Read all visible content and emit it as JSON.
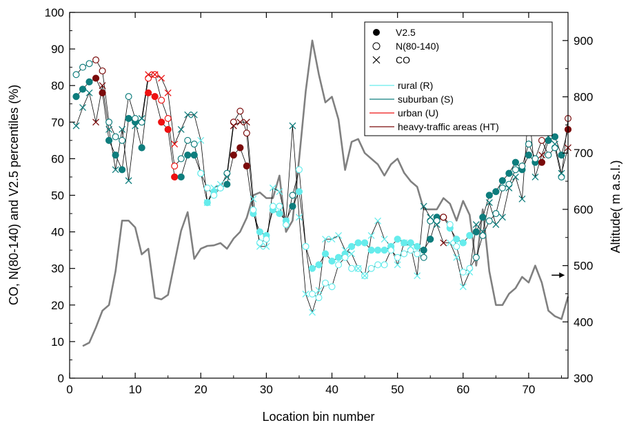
{
  "chart_data": {
    "type": "scatter",
    "xlabel": "Location bin number",
    "ylabel": "CO, N(80-140) and V2.5 percentiles (%)",
    "y2label": "Altitude( m a.s.l.)",
    "xlim": [
      0,
      76
    ],
    "ylim": [
      0,
      100
    ],
    "y2lim": [
      300,
      950
    ],
    "xticks": [
      0,
      10,
      20,
      30,
      40,
      50,
      60,
      70
    ],
    "yticks": [
      0,
      10,
      20,
      30,
      40,
      50,
      60,
      70,
      80,
      90,
      100
    ],
    "y2ticks": [
      300,
      400,
      500,
      600,
      700,
      800,
      900
    ],
    "grid": false,
    "legend_position": "top-right",
    "legend_markers": [
      {
        "label": "V2.5",
        "marker": "filled-circle"
      },
      {
        "label": "N(80-140)",
        "marker": "open-circle"
      },
      {
        "label": "CO",
        "marker": "cross"
      }
    ],
    "legend_areas": [
      {
        "key": "R",
        "label": "rural (R)",
        "color": "#66ecec"
      },
      {
        "key": "S",
        "label": "suburban (S)",
        "color": "#0e7d7d"
      },
      {
        "key": "U",
        "label": "urban (U)",
        "color": "#ee1111"
      },
      {
        "key": "HT",
        "label": "heavy-traffic areas (HT)",
        "color": "#7a0a0a"
      }
    ],
    "area_by_bin": "SSSHHSSSSSSUUUUUSSSRRRRSHHHRRRRRRSRRRRRRRRRRRRRRRRRRRSSSHRRRRSSSSSSSSSSHSSSH",
    "series": [
      {
        "name": "V2.5",
        "values": [
          77,
          79,
          81,
          82,
          78,
          65,
          61,
          57,
          71,
          70,
          63,
          78,
          77,
          70,
          68,
          55,
          55,
          61,
          61,
          56,
          48,
          51,
          52,
          53,
          61,
          63,
          58,
          45,
          40,
          39,
          46,
          45,
          43,
          47,
          51,
          36,
          30,
          31,
          34,
          32,
          33,
          34,
          36,
          37,
          37,
          35,
          35,
          35,
          36,
          38,
          37,
          37,
          36,
          35,
          38,
          44,
          44,
          41,
          38,
          37,
          39,
          40,
          44,
          50,
          51,
          54,
          56,
          59,
          57,
          61,
          59,
          59,
          65,
          66,
          61,
          68
        ]
      },
      {
        "name": "N(80-140)",
        "values": [
          83,
          85,
          86,
          87,
          84,
          70,
          66,
          65,
          77,
          71,
          70,
          82,
          83,
          76,
          71,
          58,
          60,
          65,
          64,
          56,
          52,
          50,
          52,
          56,
          70,
          73,
          67,
          46,
          37,
          38,
          47,
          47,
          42,
          50,
          57,
          36,
          23,
          22,
          26,
          25,
          31,
          33,
          30,
          30,
          28,
          30,
          31,
          31,
          35,
          33,
          34,
          35,
          34,
          33,
          43,
          43,
          44,
          42,
          36,
          29,
          30,
          33,
          39,
          43,
          45,
          52,
          53,
          57,
          58,
          64,
          60,
          65,
          61,
          63,
          55,
          71
        ]
      },
      {
        "name": "CO",
        "values": [
          69,
          74,
          78,
          70,
          80,
          68,
          57,
          68,
          54,
          69,
          71,
          83,
          83,
          82,
          78,
          64,
          68,
          72,
          72,
          65,
          48,
          52,
          53,
          55,
          69,
          70,
          70,
          49,
          36,
          36,
          52,
          51,
          43,
          69,
          44,
          23,
          18,
          24,
          38,
          38,
          39,
          35,
          34,
          30,
          28,
          39,
          43,
          38,
          36,
          31,
          37,
          36,
          28,
          47,
          44,
          42,
          37,
          37,
          33,
          25,
          29,
          42,
          40,
          48,
          42,
          44,
          52,
          55,
          49,
          74,
          55,
          61,
          66,
          64,
          56,
          63
        ]
      }
    ],
    "altitude": {
      "name": "Altitude",
      "color": "#808080",
      "x": [
        2,
        3,
        4,
        5,
        6,
        7,
        8,
        9,
        10,
        11,
        12,
        13,
        14,
        15,
        16,
        17,
        18,
        19,
        20,
        21,
        22,
        23,
        24,
        25,
        26,
        27,
        28,
        29,
        30,
        31,
        32,
        33,
        34,
        35,
        36,
        37,
        38,
        39,
        40,
        41,
        42,
        43,
        44,
        45,
        46,
        47,
        48,
        49,
        50,
        51,
        52,
        53,
        54,
        55,
        56,
        57,
        58,
        59,
        60,
        61,
        62,
        63,
        64,
        65,
        66,
        67,
        68,
        69,
        70,
        71,
        72,
        73,
        74,
        75,
        76
      ],
      "values": [
        357,
        363,
        390,
        420,
        430,
        490,
        580,
        580,
        568,
        520,
        530,
        443,
        440,
        448,
        505,
        562,
        595,
        512,
        530,
        535,
        536,
        540,
        530,
        548,
        560,
        585,
        625,
        630,
        620,
        620,
        660,
        560,
        580,
        690,
        810,
        900,
        840,
        790,
        800,
        760,
        670,
        720,
        725,
        700,
        690,
        680,
        660,
        680,
        690,
        665,
        650,
        640,
        600,
        600,
        600,
        620,
        610,
        580,
        615,
        590,
        500,
        600,
        490,
        430,
        430,
        450,
        460,
        480,
        470,
        500,
        470,
        420,
        410,
        405,
        445
      ]
    },
    "annotations": [
      {
        "type": "arrow",
        "x_from": 73.5,
        "x_to": 75.5,
        "y2": 483,
        "direction": "right",
        "refers_to": "right axis"
      }
    ]
  }
}
